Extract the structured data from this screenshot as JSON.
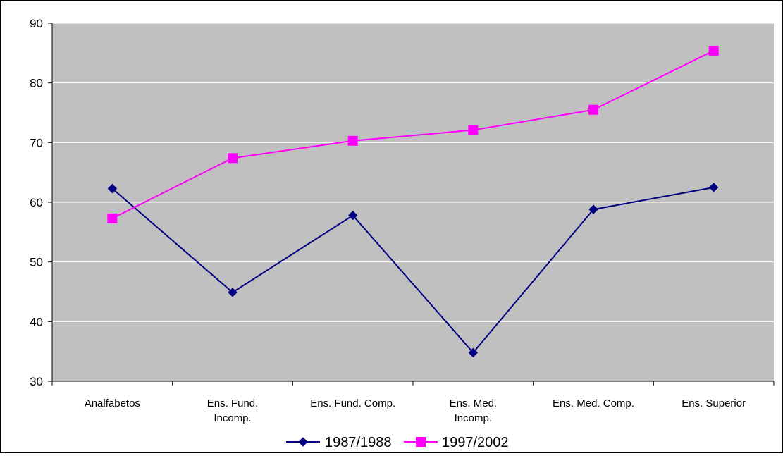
{
  "chart_data": {
    "type": "line",
    "title": "",
    "xlabel": "",
    "ylabel": "",
    "ylim": [
      30,
      90
    ],
    "yticks": [
      30,
      40,
      50,
      60,
      70,
      80,
      90
    ],
    "grid": "horizontal",
    "legend_position": "bottom",
    "plot_background": "#c0c0c0",
    "categories": [
      [
        "Analfabetos"
      ],
      [
        "Ens. Fund.",
        "Incomp."
      ],
      [
        "Ens. Fund. Comp."
      ],
      [
        "Ens. Med.",
        "Incomp."
      ],
      [
        "Ens. Med. Comp."
      ],
      [
        "Ens. Superior"
      ]
    ],
    "series": [
      {
        "name": "1987/1988",
        "color": "#000080",
        "marker": "diamond",
        "values": [
          62.3,
          44.9,
          57.8,
          34.8,
          58.8,
          62.5
        ]
      },
      {
        "name": "1997/2002",
        "color": "#ff00ff",
        "marker": "square",
        "values": [
          57.3,
          67.4,
          70.3,
          72.1,
          75.5,
          85.4
        ]
      }
    ]
  }
}
